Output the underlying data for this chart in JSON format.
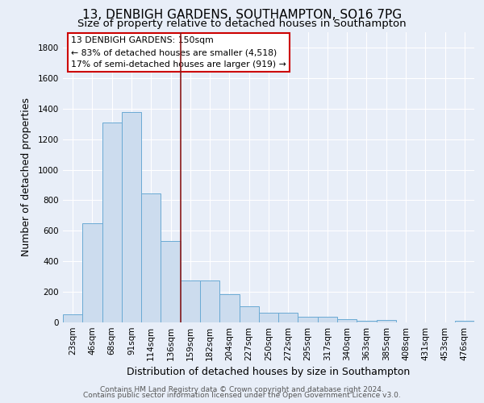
{
  "title": "13, DENBIGH GARDENS, SOUTHAMPTON, SO16 7PG",
  "subtitle": "Size of property relative to detached houses in Southampton",
  "xlabel": "Distribution of detached houses by size in Southampton",
  "ylabel": "Number of detached properties",
  "categories": [
    "23sqm",
    "46sqm",
    "68sqm",
    "91sqm",
    "114sqm",
    "136sqm",
    "159sqm",
    "182sqm",
    "204sqm",
    "227sqm",
    "250sqm",
    "272sqm",
    "295sqm",
    "317sqm",
    "340sqm",
    "363sqm",
    "385sqm",
    "408sqm",
    "431sqm",
    "453sqm",
    "476sqm"
  ],
  "values": [
    55,
    648,
    1310,
    1375,
    845,
    535,
    275,
    275,
    185,
    105,
    65,
    65,
    38,
    35,
    22,
    10,
    15,
    0,
    0,
    0,
    12
  ],
  "bar_color": "#ccdcee",
  "bar_edge_color": "#6aaad4",
  "background_color": "#e8eef8",
  "grid_color": "#ffffff",
  "vline_x": 5.5,
  "vline_color": "#8b1a1a",
  "annotation_title": "13 DENBIGH GARDENS: 150sqm",
  "annotation_line1": "← 83% of detached houses are smaller (4,518)",
  "annotation_line2": "17% of semi-detached houses are larger (919) →",
  "annotation_box_color": "#ffffff",
  "annotation_border_color": "#cc0000",
  "ylim": [
    0,
    1900
  ],
  "yticks": [
    0,
    200,
    400,
    600,
    800,
    1000,
    1200,
    1400,
    1600,
    1800
  ],
  "footer1": "Contains HM Land Registry data © Crown copyright and database right 2024.",
  "footer2": "Contains public sector information licensed under the Open Government Licence v3.0.",
  "title_fontsize": 11,
  "subtitle_fontsize": 9.5,
  "label_fontsize": 9,
  "tick_fontsize": 7.5,
  "footer_fontsize": 6.5
}
